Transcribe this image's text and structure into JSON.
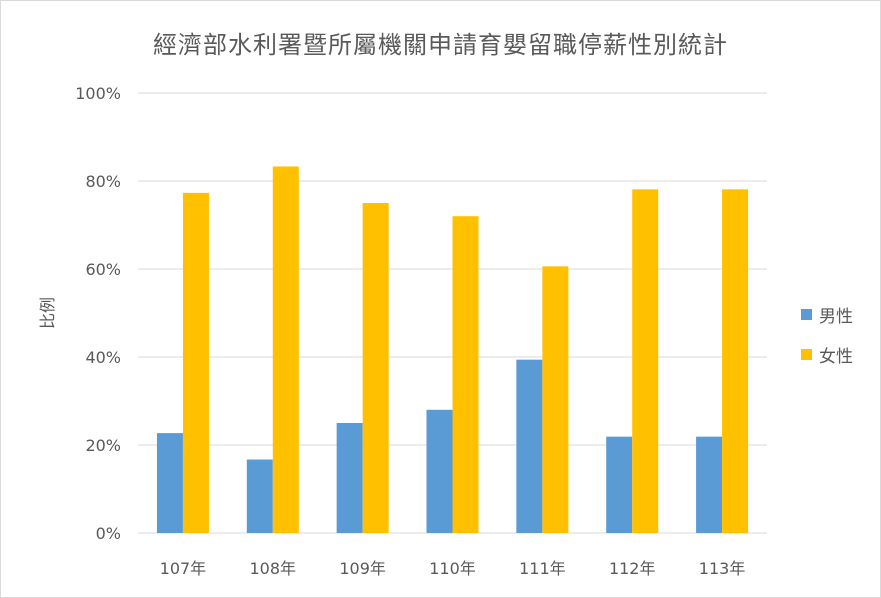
{
  "chart_data": {
    "type": "bar",
    "title": "經濟部水利署暨所屬機關申請育嬰留職停薪性別統計",
    "xlabel": "",
    "ylabel": "比例",
    "categories": [
      "107年",
      "108年",
      "109年",
      "110年",
      "111年",
      "112年",
      "113年"
    ],
    "series": [
      {
        "name": "男性",
        "color": "#5b9bd5",
        "values": [
          22.7,
          16.7,
          25.0,
          28.0,
          39.4,
          21.9,
          21.9
        ]
      },
      {
        "name": "女性",
        "color": "#ffc000",
        "values": [
          77.3,
          83.3,
          75.0,
          72.0,
          60.6,
          78.1,
          78.1
        ]
      }
    ],
    "ylim": [
      0,
      100
    ],
    "yticks": [
      "0%",
      "20%",
      "40%",
      "60%",
      "80%",
      "100%"
    ],
    "grid": true,
    "legend_position": "right"
  }
}
